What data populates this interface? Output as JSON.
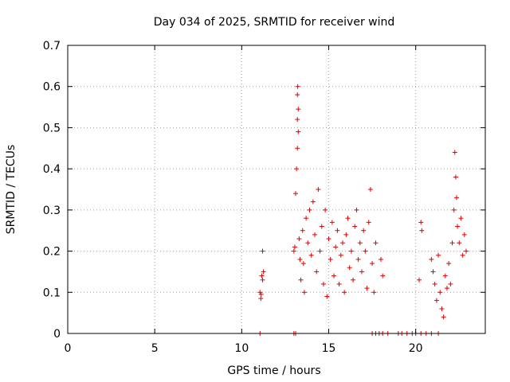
{
  "chart_data": {
    "type": "scatter",
    "title": "Day 034 of 2025, SRMTID for receiver wind",
    "xlabel": "GPS time / hours",
    "ylabel": "SRMTID / TECUs",
    "xlim": [
      0,
      24
    ],
    "ylim": [
      0,
      0.7
    ],
    "xticks": [
      0,
      5,
      10,
      15,
      20
    ],
    "yticks": [
      0,
      0.1,
      0.2,
      0.3,
      0.4,
      0.5,
      0.6,
      0.7
    ],
    "ytick_labels": [
      "0",
      "0.1",
      "0.2",
      "0.3",
      "0.4",
      "0.5",
      "0.6",
      "0.7"
    ],
    "grid": true,
    "legend": "none",
    "marker": "+",
    "series": [
      {
        "name": "SRMTID",
        "color": "#e00000",
        "points": [
          [
            11.05,
            0.1
          ],
          [
            11.1,
            0.085
          ],
          [
            11.12,
            0.095
          ],
          [
            11.15,
            0.14
          ],
          [
            11.2,
            0.2
          ],
          [
            11.25,
            0.15
          ],
          [
            11.2,
            0.13
          ],
          [
            13.0,
            0.2
          ],
          [
            13.05,
            0.21
          ],
          [
            13.1,
            0.34
          ],
          [
            13.15,
            0.4
          ],
          [
            13.2,
            0.45
          ],
          [
            13.25,
            0.49
          ],
          [
            13.2,
            0.52
          ],
          [
            13.25,
            0.545
          ],
          [
            13.2,
            0.58
          ],
          [
            13.22,
            0.6
          ],
          [
            13.3,
            0.23
          ],
          [
            13.35,
            0.18
          ],
          [
            13.4,
            0.13
          ],
          [
            13.5,
            0.25
          ],
          [
            13.55,
            0.17
          ],
          [
            13.6,
            0.1
          ],
          [
            13.7,
            0.28
          ],
          [
            13.8,
            0.22
          ],
          [
            13.9,
            0.3
          ],
          [
            14.0,
            0.19
          ],
          [
            14.1,
            0.32
          ],
          [
            14.2,
            0.24
          ],
          [
            14.3,
            0.15
          ],
          [
            14.4,
            0.35
          ],
          [
            14.5,
            0.2
          ],
          [
            14.6,
            0.26
          ],
          [
            14.7,
            0.12
          ],
          [
            14.8,
            0.3
          ],
          [
            14.9,
            0.09
          ],
          [
            15.0,
            0.23
          ],
          [
            15.1,
            0.18
          ],
          [
            15.2,
            0.27
          ],
          [
            15.3,
            0.14
          ],
          [
            15.4,
            0.21
          ],
          [
            15.5,
            0.25
          ],
          [
            15.6,
            0.12
          ],
          [
            15.7,
            0.19
          ],
          [
            15.8,
            0.22
          ],
          [
            15.9,
            0.1
          ],
          [
            16.0,
            0.24
          ],
          [
            16.1,
            0.28
          ],
          [
            16.2,
            0.16
          ],
          [
            16.3,
            0.2
          ],
          [
            16.4,
            0.13
          ],
          [
            16.5,
            0.26
          ],
          [
            16.6,
            0.3
          ],
          [
            16.7,
            0.18
          ],
          [
            16.8,
            0.22
          ],
          [
            16.9,
            0.15
          ],
          [
            17.0,
            0.25
          ],
          [
            17.1,
            0.2
          ],
          [
            17.2,
            0.11
          ],
          [
            17.3,
            0.27
          ],
          [
            17.4,
            0.35
          ],
          [
            17.5,
            0.17
          ],
          [
            17.6,
            0.1
          ],
          [
            17.7,
            0.22
          ],
          [
            18.0,
            0.18
          ],
          [
            18.1,
            0.14
          ],
          [
            20.3,
            0.27
          ],
          [
            20.35,
            0.25
          ],
          [
            20.2,
            0.13
          ],
          [
            20.9,
            0.18
          ],
          [
            21.0,
            0.15
          ],
          [
            21.1,
            0.12
          ],
          [
            21.2,
            0.08
          ],
          [
            21.3,
            0.19
          ],
          [
            21.4,
            0.1
          ],
          [
            21.5,
            0.06
          ],
          [
            21.6,
            0.04
          ],
          [
            21.7,
            0.14
          ],
          [
            21.8,
            0.11
          ],
          [
            21.9,
            0.17
          ],
          [
            22.0,
            0.12
          ],
          [
            22.1,
            0.22
          ],
          [
            22.2,
            0.3
          ],
          [
            22.25,
            0.44
          ],
          [
            22.3,
            0.38
          ],
          [
            22.35,
            0.33
          ],
          [
            22.4,
            0.26
          ],
          [
            22.5,
            0.22
          ],
          [
            22.6,
            0.28
          ],
          [
            22.7,
            0.19
          ],
          [
            22.8,
            0.24
          ],
          [
            22.9,
            0.2
          ],
          [
            11.05,
            0
          ],
          [
            13.0,
            0
          ],
          [
            13.1,
            0
          ],
          [
            17.5,
            0
          ],
          [
            17.7,
            0
          ],
          [
            17.9,
            0
          ],
          [
            18.1,
            0
          ],
          [
            18.4,
            0
          ],
          [
            19.0,
            0
          ],
          [
            19.2,
            0
          ],
          [
            19.5,
            0
          ],
          [
            19.8,
            0
          ],
          [
            20.0,
            0
          ],
          [
            20.3,
            0
          ],
          [
            20.6,
            0
          ],
          [
            20.9,
            0
          ],
          [
            21.3,
            0
          ]
        ]
      }
    ]
  }
}
